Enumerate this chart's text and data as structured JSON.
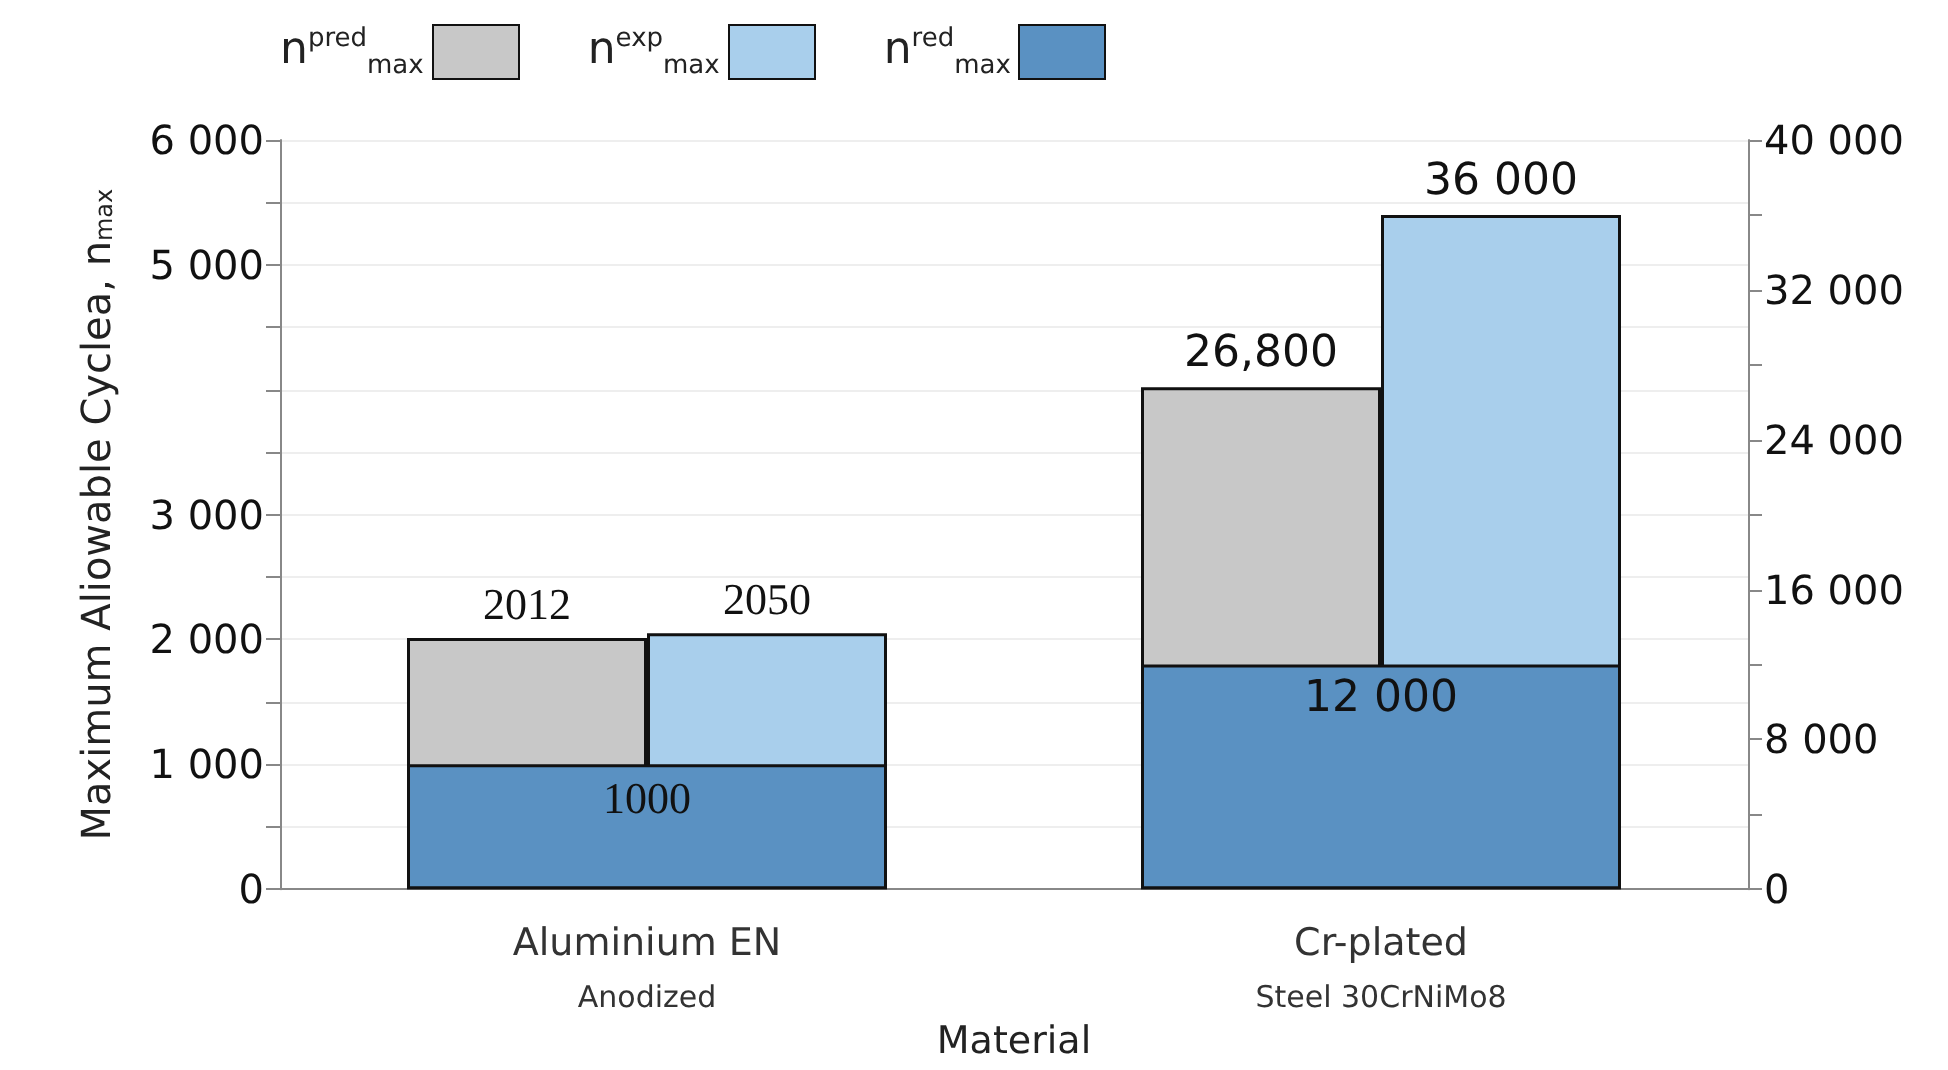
{
  "chart_data": {
    "type": "bar",
    "categories": [
      "Aluminium EN\nAnodized",
      "Cr-plated\nSteel 30CrNiMo8"
    ],
    "xlabel": "Material",
    "ylabel": "Maximum Aliowable Cyclea, n$_{max}$",
    "series": [
      {
        "name": "n$^{pred}$$_{max}$",
        "color": "#c8c8c8",
        "values": [
          2012,
          null
        ],
        "value_labels": [
          "2012",
          null
        ]
      },
      {
        "name": "n$^{exp}$$_{max}$",
        "color": "#a9cfec",
        "values": [
          2050,
          null
        ],
        "value_labels": [
          "2050",
          null
        ]
      },
      {
        "name": "n$^{red}$$_{max}$",
        "color": "#5a91c2",
        "values": [
          1000,
          null
        ],
        "value_labels": [
          "1000",
          null
        ]
      },
      {
        "color": "#c8c8c8",
        "axis": "y2",
        "values": [
          null,
          26800
        ],
        "value_labels": [
          null,
          "26,800"
        ]
      },
      {
        "color": "#a9cfec",
        "axis": "y2",
        "values": [
          null,
          36000
        ],
        "value_labels": [
          null,
          "36 000"
        ]
      },
      {
        "color": "#5a91c2",
        "axis": "y2",
        "values": [
          null,
          12000
        ],
        "value_labels": [
          null,
          "12 000"
        ]
      }
    ],
    "ylim": [
      0,
      6000
    ],
    "yticks": [
      0,
      {
        "value": 500,
        "label": null
      },
      {
        "value": 1000,
        "label": "1 000"
      },
      {
        "value": 1500,
        "label": null
      },
      {
        "value": 2000,
        "label": "2 000"
      },
      {
        "value": 2500,
        "label": null
      },
      {
        "value": 3000,
        "label": "3 000"
      },
      {
        "value": 3500,
        "label": null
      },
      {
        "value": 4000,
        "label": null
      },
      {
        "value": 4500,
        "label": null
      },
      {
        "value": 5000,
        "label": "5 000"
      },
      {
        "value": 5500,
        "label": null
      },
      {
        "value": 6000,
        "label": "6 000"
      }
    ],
    "y2lim": [
      0,
      40000
    ],
    "y2ticks": [
      0,
      {
        "value": 4000,
        "label": null
      },
      {
        "value": 8000,
        "label": "8 000"
      },
      {
        "value": 12000,
        "label": null
      },
      {
        "value": 16000,
        "label": "16 000"
      },
      {
        "value": 20000,
        "label": null
      },
      {
        "value": 24000,
        "label": "24 000"
      },
      {
        "value": 28000,
        "label": null
      },
      {
        "value": 32000,
        "label": "32 000"
      },
      {
        "value": 36000,
        "label": null
      },
      {
        "value": 40000,
        "label": "40 000"
      }
    ],
    "grid": "y",
    "legend": "top left"
  }
}
